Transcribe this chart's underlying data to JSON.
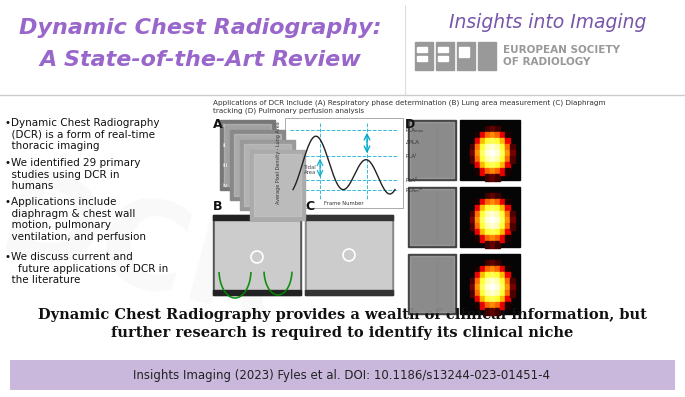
{
  "title_left_line1": "Dynamic Chest Radiography:",
  "title_left_line2": "A State-of-the-Art Review",
  "title_right_line1": "Insights into Imaging",
  "title_right_line2": "EUROPEAN SOCIETY",
  "title_right_line3": "OF RADIOLOGY",
  "title_color": "#9966cc",
  "title_right_color": "#7755aa",
  "esrf_color": "#999999",
  "bullet_points": [
    "•Dynamic Chest Radiography\n  (DCR) is a form of real-time\n  thoracic imaging",
    "•We identified 29 primary\n  studies using DCR in\n  humans",
    "•Applications include\n  diaphragm & chest wall\n  motion, pulmonary\n  ventilation, and perfusion",
    "•We discuss current and\n    future applications of DCR in\n  the literature"
  ],
  "caption": "Applications of DCR include (A) Respiratory phase determination (B) Lung area measurement (C) Diaphragm\ntracking (D) Pulmonary perfusion analysis",
  "bottom_text_line1": "Dynamic Chest Radiography provides a wealth of clinical information, but",
  "bottom_text_line2": "further research is required to identify its clinical niche",
  "footer_text": "Insights Imaging (2023) Fyles et al. DOI: 10.1186/s13244-023-01451-4",
  "footer_bg": "#c9b8dc",
  "bg_color": "#ffffff",
  "watermark_color": "#eeeeee",
  "label_A": "A",
  "label_B": "B",
  "label_C": "C",
  "label_D": "D",
  "bottom_text_color": "#111111",
  "footer_text_color": "#222222"
}
